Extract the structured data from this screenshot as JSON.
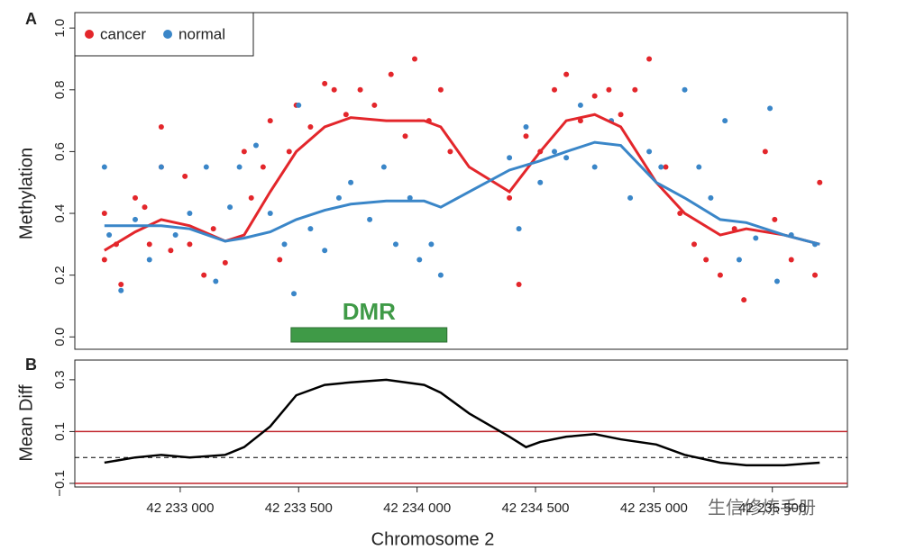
{
  "panel_labels": [
    "A",
    "B"
  ],
  "watermark": "生信修炼手册",
  "chart_data": [
    {
      "type": "scatter",
      "y_label": "Methylation",
      "xlim": [
        42232555,
        42235817
      ],
      "ylim": [
        -0.04,
        1.05
      ],
      "yticks": [
        {
          "value": 0,
          "label": "0.0"
        },
        0.2,
        0.4,
        0.6,
        0.8,
        {
          "value": 1,
          "label": "1.0"
        }
      ],
      "legend": "top-left",
      "series": [
        {
          "name": "cancer",
          "color": "#e3262b",
          "x": [
            42232680,
            42232680,
            42232730,
            42232750,
            42232810,
            42232850,
            42232870,
            42232920,
            42232920,
            42232960,
            42233020,
            42233040,
            42233100,
            42233140,
            42233190,
            42233270,
            42233300,
            42233350,
            42233380,
            42233420,
            42233460,
            42233490,
            42233550,
            42233610,
            42233650,
            42233700,
            42233760,
            42233820,
            42233890,
            42233950,
            42233990,
            42234050,
            42234100,
            42234140,
            42234390,
            42234430,
            42234460,
            42234520,
            42234580,
            42234630,
            42234690,
            42234750,
            42234810,
            42234860,
            42234920,
            42234980,
            42235050,
            42235110,
            42235170,
            42235220,
            42235280,
            42235340,
            42235380,
            42235470,
            42235510,
            42235580,
            42235680,
            42235700
          ],
          "values": [
            0.25,
            0.4,
            0.3,
            0.17,
            0.45,
            0.42,
            0.3,
            0.68,
            0.55,
            0.28,
            0.52,
            0.3,
            0.2,
            0.35,
            0.24,
            0.6,
            0.45,
            0.55,
            0.7,
            0.25,
            0.6,
            0.75,
            0.68,
            0.82,
            0.8,
            0.72,
            0.8,
            0.75,
            0.85,
            0.65,
            0.9,
            0.7,
            0.8,
            0.6,
            0.45,
            0.17,
            0.65,
            0.6,
            0.8,
            0.85,
            0.7,
            0.78,
            0.8,
            0.72,
            0.8,
            0.9,
            0.55,
            0.4,
            0.3,
            0.25,
            0.2,
            0.35,
            0.12,
            0.6,
            0.38,
            0.25,
            0.2,
            0.5
          ]
        },
        {
          "name": "normal",
          "color": "#3a86c8",
          "x": [
            42232680,
            42232700,
            42232750,
            42232810,
            42232870,
            42232920,
            42232980,
            42233040,
            42233110,
            42233150,
            42233210,
            42233250,
            42233320,
            42233380,
            42233440,
            42233480,
            42233500,
            42233550,
            42233610,
            42233670,
            42233720,
            42233800,
            42233860,
            42233910,
            42233970,
            42234010,
            42234060,
            42234100,
            42234390,
            42234430,
            42234460,
            42234520,
            42234580,
            42234630,
            42234690,
            42234750,
            42234820,
            42234900,
            42234980,
            42235030,
            42235130,
            42235190,
            42235240,
            42235300,
            42235360,
            42235430,
            42235490,
            42235520,
            42235580,
            42235680
          ],
          "values": [
            0.55,
            0.33,
            0.15,
            0.38,
            0.25,
            0.55,
            0.33,
            0.4,
            0.55,
            0.18,
            0.42,
            0.55,
            0.62,
            0.4,
            0.3,
            0.14,
            0.75,
            0.35,
            0.28,
            0.45,
            0.5,
            0.38,
            0.55,
            0.3,
            0.45,
            0.25,
            0.3,
            0.2,
            0.58,
            0.35,
            0.68,
            0.5,
            0.6,
            0.58,
            0.75,
            0.55,
            0.7,
            0.45,
            0.6,
            0.55,
            0.8,
            0.55,
            0.45,
            0.7,
            0.25,
            0.32,
            0.74,
            0.18,
            0.33,
            0.3
          ]
        }
      ],
      "smooth_x": [
        42232680,
        42232810,
        42232920,
        42233040,
        42233190,
        42233270,
        42233380,
        42233490,
        42233610,
        42233720,
        42233870,
        42234030,
        42234100,
        42234220,
        42234390,
        42234520,
        42234630,
        42234750,
        42234860,
        42235010,
        42235130,
        42235280,
        42235390,
        42235550,
        42235700
      ],
      "smooth_lines": [
        {
          "color": "#e3262b",
          "values": [
            0.28,
            0.34,
            0.38,
            0.36,
            0.31,
            0.33,
            0.47,
            0.6,
            0.68,
            0.71,
            0.7,
            0.7,
            0.68,
            0.55,
            0.47,
            0.6,
            0.7,
            0.72,
            0.68,
            0.5,
            0.4,
            0.33,
            0.35,
            0.33,
            0.3
          ]
        },
        {
          "color": "#3a86c8",
          "values": [
            0.36,
            0.36,
            0.36,
            0.35,
            0.31,
            0.32,
            0.34,
            0.38,
            0.41,
            0.43,
            0.44,
            0.44,
            0.42,
            0.47,
            0.54,
            0.57,
            0.6,
            0.63,
            0.62,
            0.5,
            0.45,
            0.38,
            0.37,
            0.33,
            0.3
          ]
        }
      ],
      "dmr": {
        "label": "DMR",
        "start": 42233468,
        "end": 42234126,
        "color": "#3f9a47"
      }
    },
    {
      "type": "line",
      "y_label": "Mean Diff",
      "x_label": "Chromosome 2",
      "xlim": [
        42232555,
        42235817
      ],
      "ylim": [
        -0.114,
        0.376
      ],
      "xticks": [
        {
          "value": 42233000,
          "label": "42 233 000"
        },
        {
          "value": 42233500,
          "label": "42 233 500"
        },
        {
          "value": 42234000,
          "label": "42 234 000"
        },
        {
          "value": 42234500,
          "label": "42 234 500"
        },
        {
          "value": 42235000,
          "label": "42 235 000"
        },
        {
          "value": 42235500,
          "label": "42 235 500"
        }
      ],
      "yticks": [
        {
          "value": -0.1,
          "label": "−0.1"
        },
        0.1,
        0.3
      ],
      "color": "#000000",
      "x": [
        42232680,
        42232810,
        42232920,
        42233040,
        42233190,
        42233270,
        42233380,
        42233490,
        42233610,
        42233720,
        42233870,
        42234030,
        42234100,
        42234220,
        42234390,
        42234460,
        42234520,
        42234630,
        42234750,
        42234860,
        42235010,
        42235130,
        42235280,
        42235390,
        42235550,
        42235700
      ],
      "values": [
        -0.02,
        0,
        0.01,
        0,
        0.01,
        0.04,
        0.12,
        0.24,
        0.28,
        0.29,
        0.3,
        0.28,
        0.25,
        0.17,
        0.08,
        0.04,
        0.06,
        0.08,
        0.09,
        0.07,
        0.05,
        0.01,
        -0.02,
        -0.03,
        -0.03,
        -0.02
      ],
      "threshold_lines": [
        {
          "value": 0.1,
          "color": "#c1272d"
        },
        {
          "value": -0.1,
          "color": "#c1272d"
        }
      ],
      "zero_line": {
        "value": 0,
        "color": "#000000"
      }
    }
  ]
}
